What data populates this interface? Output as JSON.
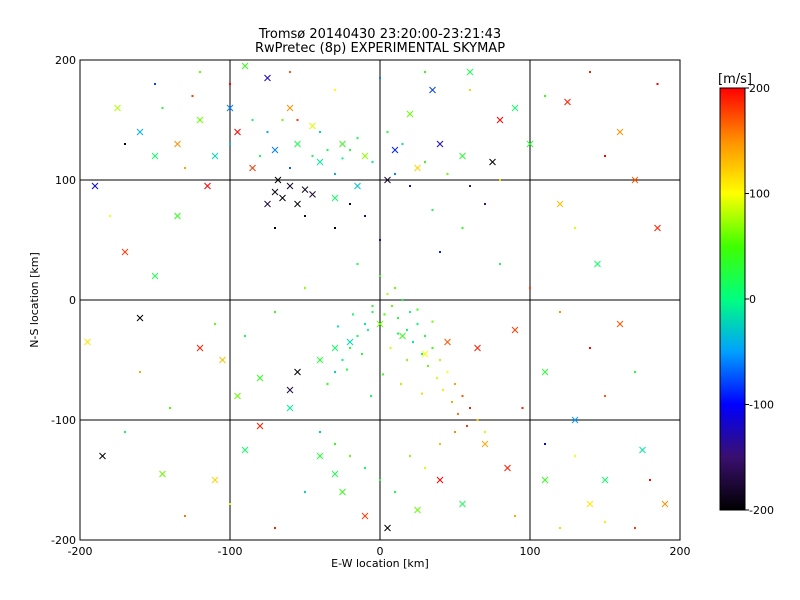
{
  "chart_data": {
    "type": "scatter",
    "title": "Tromsø 20140430 23:20:00-23:21:43",
    "subtitle": "RwPretec (8p) EXPERIMENTAL SKYMAP",
    "xlabel": "E-W location [km]",
    "ylabel": "N-S location [km]",
    "xlim": [
      -200,
      200
    ],
    "ylim": [
      -200,
      200
    ],
    "x_ticks": [
      "-200",
      "-100",
      "0",
      "100",
      "200"
    ],
    "y_ticks": [
      "-200",
      "-100",
      "0",
      "100",
      "200"
    ],
    "grid": true,
    "colorbar": {
      "label": "[m/s]",
      "range": [
        -200,
        200
      ],
      "ticks": [
        "-200",
        "-100",
        "0",
        "100",
        "200"
      ]
    },
    "series": [
      {
        "marker": "x",
        "points": [
          [
            -175,
            160,
            80
          ],
          [
            -160,
            140,
            -40
          ],
          [
            -150,
            120,
            10
          ],
          [
            -135,
            130,
            150
          ],
          [
            -120,
            150,
            60
          ],
          [
            -110,
            120,
            -20
          ],
          [
            -95,
            140,
            200
          ],
          [
            -85,
            110,
            180
          ],
          [
            -70,
            125,
            -60
          ],
          [
            -55,
            130,
            20
          ],
          [
            -40,
            115,
            -10
          ],
          [
            -25,
            130,
            40
          ],
          [
            -10,
            120,
            70
          ],
          [
            10,
            125,
            -90
          ],
          [
            25,
            110,
            120
          ],
          [
            40,
            130,
            -130
          ],
          [
            55,
            120,
            30
          ],
          [
            75,
            115,
            -200
          ],
          [
            90,
            160,
            10
          ],
          [
            125,
            165,
            190
          ],
          [
            160,
            140,
            150
          ],
          [
            170,
            100,
            170
          ],
          [
            -190,
            95,
            -110
          ],
          [
            -150,
            20,
            20
          ],
          [
            -120,
            -40,
            190
          ],
          [
            -105,
            -50,
            130
          ],
          [
            -95,
            -80,
            60
          ],
          [
            -80,
            -65,
            40
          ],
          [
            -60,
            -75,
            -170
          ],
          [
            -55,
            -60,
            -200
          ],
          [
            -40,
            -50,
            30
          ],
          [
            -30,
            -40,
            10
          ],
          [
            -20,
            -35,
            -20
          ],
          [
            0,
            -20,
            60
          ],
          [
            15,
            -30,
            40
          ],
          [
            30,
            -45,
            100
          ],
          [
            45,
            -35,
            170
          ],
          [
            65,
            -40,
            190
          ],
          [
            90,
            -25,
            180
          ],
          [
            110,
            -60,
            30
          ],
          [
            130,
            -100,
            -50
          ],
          [
            150,
            -150,
            10
          ],
          [
            -185,
            -130,
            -200
          ],
          [
            -145,
            -145,
            60
          ],
          [
            -110,
            -150,
            120
          ],
          [
            -90,
            -125,
            10
          ],
          [
            -80,
            -105,
            190
          ],
          [
            -60,
            -90,
            -10
          ],
          [
            -40,
            -130,
            30
          ],
          [
            -30,
            -145,
            20
          ],
          [
            -25,
            -160,
            40
          ],
          [
            -10,
            -180,
            180
          ],
          [
            5,
            -190,
            -200
          ],
          [
            25,
            -175,
            60
          ],
          [
            40,
            -150,
            200
          ],
          [
            55,
            -170,
            20
          ],
          [
            70,
            -120,
            140
          ],
          [
            85,
            -140,
            190
          ],
          [
            110,
            -150,
            40
          ],
          [
            140,
            -170,
            110
          ],
          [
            175,
            -125,
            -10
          ],
          [
            190,
            -170,
            150
          ],
          [
            -195,
            -35,
            110
          ],
          [
            -160,
            -15,
            -200
          ],
          [
            -170,
            40,
            180
          ],
          [
            -135,
            70,
            40
          ],
          [
            -115,
            95,
            200
          ],
          [
            -100,
            160,
            -60
          ],
          [
            -90,
            195,
            40
          ],
          [
            -75,
            185,
            -120
          ],
          [
            -60,
            160,
            150
          ],
          [
            -45,
            145,
            90
          ],
          [
            -30,
            85,
            10
          ],
          [
            -15,
            95,
            -30
          ],
          [
            5,
            100,
            -180
          ],
          [
            20,
            155,
            60
          ],
          [
            35,
            175,
            -80
          ],
          [
            60,
            190,
            20
          ],
          [
            80,
            150,
            200
          ],
          [
            100,
            130,
            30
          ],
          [
            120,
            80,
            130
          ],
          [
            145,
            30,
            10
          ],
          [
            160,
            -20,
            170
          ],
          [
            185,
            60,
            190
          ],
          [
            -70,
            90,
            -190
          ],
          [
            -65,
            85,
            -200
          ],
          [
            -60,
            95,
            -180
          ],
          [
            -55,
            80,
            -195
          ],
          [
            -50,
            92,
            -185
          ],
          [
            -75,
            80,
            -170
          ],
          [
            -68,
            100,
            -200
          ],
          [
            -45,
            88,
            -175
          ]
        ]
      },
      {
        "marker": "dot",
        "points": [
          [
            -130,
            110,
            140
          ],
          [
            -100,
            130,
            -30
          ],
          [
            -80,
            120,
            10
          ],
          [
            -60,
            110,
            -70
          ],
          [
            -45,
            120,
            20
          ],
          [
            -30,
            105,
            -40
          ],
          [
            -20,
            125,
            30
          ],
          [
            -5,
            115,
            -10
          ],
          [
            10,
            105,
            -60
          ],
          [
            20,
            95,
            -120
          ],
          [
            30,
            115,
            40
          ],
          [
            45,
            105,
            60
          ],
          [
            60,
            95,
            -150
          ],
          [
            80,
            100,
            120
          ],
          [
            -70,
            60,
            -200
          ],
          [
            -50,
            70,
            -180
          ],
          [
            -30,
            60,
            -200
          ],
          [
            -20,
            80,
            -190
          ],
          [
            -10,
            70,
            -160
          ],
          [
            0,
            50,
            -140
          ],
          [
            -15,
            30,
            20
          ],
          [
            0,
            20,
            40
          ],
          [
            10,
            10,
            60
          ],
          [
            15,
            0,
            20
          ],
          [
            20,
            -10,
            10
          ],
          [
            25,
            -20,
            0
          ],
          [
            30,
            -30,
            30
          ],
          [
            35,
            -40,
            50
          ],
          [
            40,
            -50,
            80
          ],
          [
            45,
            -60,
            100
          ],
          [
            50,
            -70,
            140
          ],
          [
            55,
            -80,
            170
          ],
          [
            60,
            -90,
            190
          ],
          [
            65,
            -100,
            120
          ],
          [
            70,
            -110,
            90
          ],
          [
            -5,
            -10,
            20
          ],
          [
            -10,
            -20,
            -10
          ],
          [
            -15,
            -30,
            10
          ],
          [
            -20,
            -40,
            30
          ],
          [
            -25,
            -50,
            0
          ],
          [
            -30,
            -60,
            -20
          ],
          [
            -35,
            -70,
            40
          ],
          [
            5,
            5,
            80
          ],
          [
            8,
            -5,
            60
          ],
          [
            12,
            -15,
            30
          ],
          [
            18,
            -25,
            10
          ],
          [
            22,
            -35,
            -10
          ],
          [
            28,
            -45,
            20
          ],
          [
            32,
            -55,
            60
          ],
          [
            38,
            -65,
            90
          ],
          [
            42,
            -75,
            110
          ],
          [
            48,
            -85,
            140
          ],
          [
            52,
            -95,
            160
          ],
          [
            58,
            -105,
            180
          ],
          [
            -40,
            -110,
            -30
          ],
          [
            -30,
            -120,
            40
          ],
          [
            -20,
            -130,
            60
          ],
          [
            -10,
            -140,
            10
          ],
          [
            0,
            -150,
            30
          ],
          [
            10,
            -160,
            20
          ],
          [
            20,
            -130,
            70
          ],
          [
            30,
            -140,
            90
          ],
          [
            40,
            -120,
            130
          ],
          [
            50,
            -110,
            150
          ],
          [
            -110,
            -20,
            60
          ],
          [
            -90,
            -30,
            20
          ],
          [
            -70,
            -10,
            40
          ],
          [
            -50,
            10,
            70
          ],
          [
            80,
            30,
            20
          ],
          [
            100,
            10,
            180
          ],
          [
            120,
            -10,
            150
          ],
          [
            140,
            -40,
            200
          ],
          [
            -150,
            180,
            -80
          ],
          [
            -120,
            190,
            60
          ],
          [
            -100,
            180,
            200
          ],
          [
            -60,
            190,
            170
          ],
          [
            -30,
            175,
            100
          ],
          [
            0,
            185,
            -60
          ],
          [
            30,
            190,
            40
          ],
          [
            60,
            175,
            120
          ],
          [
            -170,
            130,
            -200
          ],
          [
            -145,
            160,
            30
          ],
          [
            -125,
            170,
            180
          ],
          [
            -180,
            70,
            100
          ],
          [
            -160,
            -60,
            140
          ],
          [
            -140,
            -90,
            50
          ],
          [
            -170,
            -110,
            10
          ],
          [
            -130,
            -180,
            160
          ],
          [
            -100,
            -170,
            90
          ],
          [
            -70,
            -190,
            190
          ],
          [
            -50,
            -160,
            -20
          ],
          [
            90,
            -180,
            140
          ],
          [
            120,
            -190,
            120
          ],
          [
            150,
            -185,
            110
          ],
          [
            170,
            -190,
            180
          ],
          [
            180,
            -150,
            200
          ],
          [
            130,
            -130,
            100
          ],
          [
            110,
            -120,
            -100
          ],
          [
            95,
            -90,
            190
          ],
          [
            150,
            -80,
            170
          ],
          [
            170,
            -60,
            30
          ],
          [
            130,
            60,
            90
          ],
          [
            150,
            120,
            200
          ],
          [
            110,
            170,
            40
          ],
          [
            140,
            190,
            190
          ],
          [
            185,
            180,
            200
          ],
          [
            -40,
            140,
            -20
          ],
          [
            -35,
            125,
            20
          ],
          [
            -25,
            118,
            -5
          ],
          [
            -15,
            135,
            15
          ],
          [
            5,
            140,
            35
          ],
          [
            15,
            130,
            -15
          ],
          [
            -5,
            -5,
            30
          ],
          [
            3,
            -12,
            50
          ],
          [
            -8,
            -25,
            0
          ],
          [
            12,
            -28,
            20
          ],
          [
            25,
            -8,
            40
          ],
          [
            35,
            -18,
            60
          ],
          [
            -18,
            -12,
            10
          ],
          [
            -28,
            -22,
            -10
          ],
          [
            7,
            -40,
            90
          ],
          [
            -12,
            -45,
            30
          ],
          [
            18,
            -50,
            70
          ],
          [
            -22,
            -58,
            20
          ],
          [
            2,
            -62,
            40
          ],
          [
            14,
            -70,
            80
          ],
          [
            28,
            -78,
            120
          ],
          [
            -6,
            -80,
            10
          ],
          [
            40,
            40,
            -90
          ],
          [
            55,
            60,
            40
          ],
          [
            70,
            80,
            -150
          ],
          [
            35,
            75,
            20
          ],
          [
            -85,
            150,
            10
          ],
          [
            -75,
            140,
            -40
          ],
          [
            -65,
            150,
            60
          ],
          [
            -55,
            150,
            180
          ]
        ]
      }
    ]
  }
}
